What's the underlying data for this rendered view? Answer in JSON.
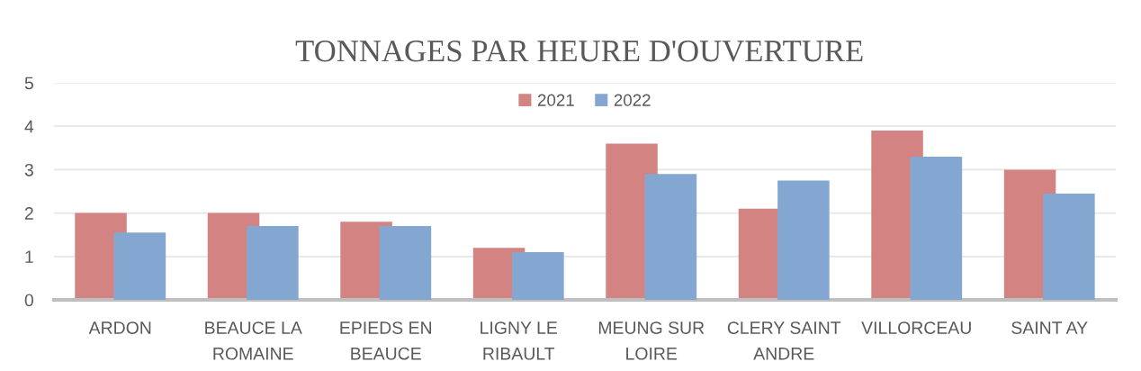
{
  "chart_data": {
    "type": "bar",
    "title": "TONNAGES PAR HEURE D'OUVERTURE",
    "categories": [
      "ARDON",
      "BEAUCE LA ROMAINE",
      "EPIEDS EN BEAUCE",
      "LIGNY LE RIBAULT",
      "MEUNG SUR LOIRE",
      "CLERY SAINT ANDRE",
      "VILLORCEAU",
      "SAINT AY"
    ],
    "series": [
      {
        "name": "2021",
        "color": "#d38482",
        "values": [
          2.0,
          2.0,
          1.8,
          1.2,
          3.6,
          2.1,
          3.9,
          3.0
        ]
      },
      {
        "name": "2022",
        "color": "#84a7d1",
        "values": [
          1.55,
          1.7,
          1.7,
          1.1,
          2.9,
          2.75,
          3.3,
          2.45
        ]
      }
    ],
    "ylim": [
      0,
      5
    ],
    "yticks": [
      0,
      1,
      2,
      3,
      4,
      5
    ],
    "grid": "y",
    "legend": "top"
  }
}
